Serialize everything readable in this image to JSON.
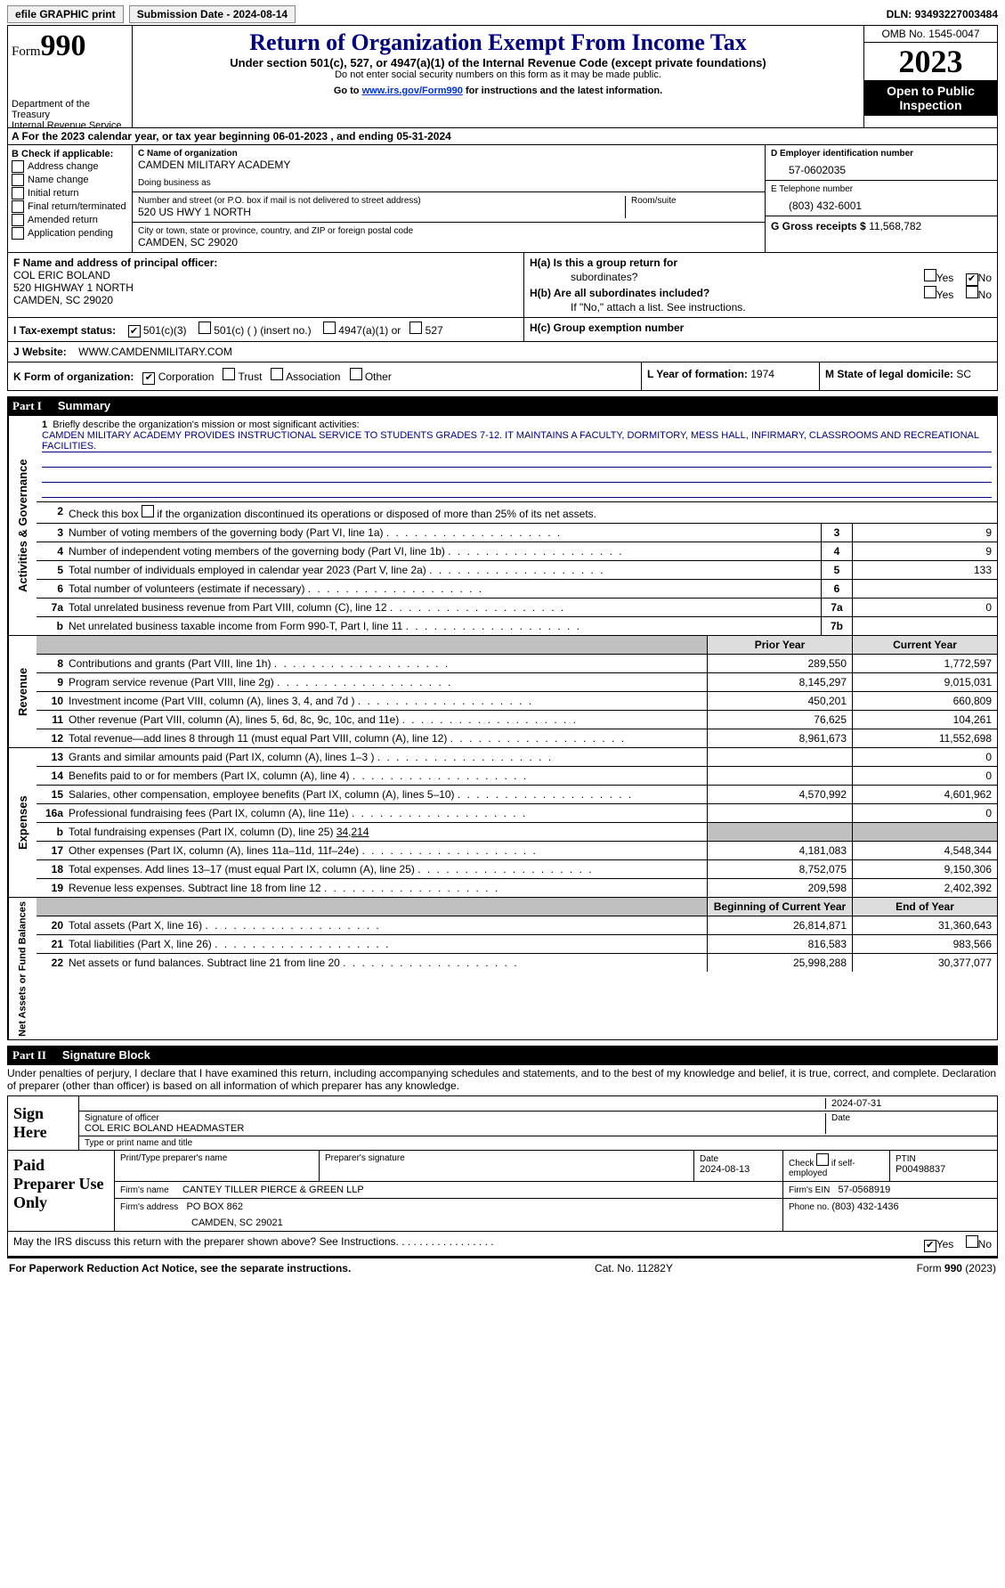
{
  "topbar": {
    "efile": "efile GRAPHIC print",
    "submission_label": "Submission Date - ",
    "submission_date": "2024-08-14",
    "dln_label": "DLN: ",
    "dln": "93493227003484"
  },
  "header": {
    "form_label": "Form",
    "form_number": "990",
    "title": "Return of Organization Exempt From Income Tax",
    "subtitle1": "Under section 501(c), 527, or 4947(a)(1) of the Internal Revenue Code (except private foundations)",
    "subtitle2": "Do not enter social security numbers on this form as it may be made public.",
    "subtitle3_prefix": "Go to ",
    "subtitle3_link": "www.irs.gov/Form990",
    "subtitle3_suffix": " for instructions and the latest information.",
    "dept": "Department of the Treasury",
    "irs": "Internal Revenue Service",
    "omb": "OMB No. 1545-0047",
    "year": "2023",
    "open": "Open to Public Inspection"
  },
  "line_a": {
    "text_pre": "A For the 2023 calendar year, or tax year beginning ",
    "begin": "06-01-2023",
    "mid": " , and ending ",
    "end": "05-31-2024"
  },
  "col_b": {
    "header": "B Check if applicable:",
    "items": [
      "Address change",
      "Name change",
      "Initial return",
      "Final return/terminated",
      "Amended return",
      "Application pending"
    ]
  },
  "col_c": {
    "name_label": "C Name of organization",
    "name": "CAMDEN MILITARY ACADEMY",
    "dba_label": "Doing business as",
    "street_label": "Number and street (or P.O. box if mail is not delivered to street address)",
    "street": "520 US HWY 1 NORTH",
    "room_label": "Room/suite",
    "city_label": "City or town, state or province, country, and ZIP or foreign postal code",
    "city": "CAMDEN, SC  29020"
  },
  "col_de": {
    "d_label": "D Employer identification number",
    "d_val": "57-0602035",
    "e_label": "E Telephone number",
    "e_val": "(803) 432-6001",
    "g_label": "G Gross receipts $ ",
    "g_val": "11,568,782"
  },
  "row_f": {
    "f_label": "F Name and address of principal officer:",
    "f_name": "COL ERIC BOLAND",
    "f_street": "520 HIGHWAY 1 NORTH",
    "f_city": "CAMDEN, SC  29020",
    "ha_label": "H(a)  Is this a group return for",
    "ha_sub": "subordinates?",
    "hb_label": "H(b)  Are all subordinates included?",
    "hb_note": "If \"No,\" attach a list. See instructions.",
    "yes": "Yes",
    "no": "No"
  },
  "row_i": {
    "label": "I  Tax-exempt status:",
    "opts": [
      "501(c)(3)",
      "501(c) (  ) (insert no.)",
      "4947(a)(1) or",
      "527"
    ],
    "checked": 0,
    "hc_label": "H(c)  Group exemption number"
  },
  "row_j": {
    "label": "J  Website:",
    "val": "WWW.CAMDENMILITARY.COM"
  },
  "row_k": {
    "k_label": "K Form of organization:",
    "k_opts": [
      "Corporation",
      "Trust",
      "Association",
      "Other"
    ],
    "k_checked": 0,
    "l_label": "L Year of formation: ",
    "l_val": "1974",
    "m_label": "M State of legal domicile: ",
    "m_val": "SC"
  },
  "part1": {
    "num": "Part I",
    "title": "Summary"
  },
  "sec_ag": {
    "label": "Activities & Governance",
    "q1_num": "1",
    "q1": "Briefly describe the organization's mission or most significant activities:",
    "q1_val": "CAMDEN MILITARY ACADEMY PROVIDES INSTRUCTIONAL SERVICE TO STUDENTS GRADES 7-12. IT MAINTAINS A FACULTY, DORMITORY, MESS HALL, INFIRMARY, CLASSROOMS AND RECREATIONAL FACILITIES.",
    "q2_num": "2",
    "q2": "Check this box   if the organization discontinued its operations or disposed of more than 25% of its net assets.",
    "rows": [
      {
        "n": "3",
        "l": "Number of voting members of the governing body (Part VI, line 1a)",
        "box": "3",
        "v": "9"
      },
      {
        "n": "4",
        "l": "Number of independent voting members of the governing body (Part VI, line 1b)",
        "box": "4",
        "v": "9"
      },
      {
        "n": "5",
        "l": "Total number of individuals employed in calendar year 2023 (Part V, line 2a)",
        "box": "5",
        "v": "133"
      },
      {
        "n": "6",
        "l": "Total number of volunteers (estimate if necessary)",
        "box": "6",
        "v": ""
      },
      {
        "n": "7a",
        "l": "Total unrelated business revenue from Part VIII, column (C), line 12",
        "box": "7a",
        "v": "0"
      },
      {
        "n": "b",
        "ind": true,
        "l": "Net unrelated business taxable income from Form 990-T, Part I, line 11",
        "box": "7b",
        "v": ""
      }
    ]
  },
  "sec_rev": {
    "label": "Revenue",
    "py": "Prior Year",
    "cy": "Current Year",
    "rows": [
      {
        "n": "8",
        "l": "Contributions and grants (Part VIII, line 1h)",
        "py": "289,550",
        "cy": "1,772,597"
      },
      {
        "n": "9",
        "l": "Program service revenue (Part VIII, line 2g)",
        "py": "8,145,297",
        "cy": "9,015,031"
      },
      {
        "n": "10",
        "l": "Investment income (Part VIII, column (A), lines 3, 4, and 7d )",
        "py": "450,201",
        "cy": "660,809"
      },
      {
        "n": "11",
        "l": "Other revenue (Part VIII, column (A), lines 5, 6d, 8c, 9c, 10c, and 11e)",
        "py": "76,625",
        "cy": "104,261"
      },
      {
        "n": "12",
        "l": "Total revenue—add lines 8 through 11 (must equal Part VIII, column (A), line 12)",
        "py": "8,961,673",
        "cy": "11,552,698"
      }
    ]
  },
  "sec_exp": {
    "label": "Expenses",
    "rows": [
      {
        "n": "13",
        "l": "Grants and similar amounts paid (Part IX, column (A), lines 1–3 )",
        "py": "",
        "cy": "0"
      },
      {
        "n": "14",
        "l": "Benefits paid to or for members (Part IX, column (A), line 4)",
        "py": "",
        "cy": "0"
      },
      {
        "n": "15",
        "l": "Salaries, other compensation, employee benefits (Part IX, column (A), lines 5–10)",
        "py": "4,570,992",
        "cy": "4,601,962"
      },
      {
        "n": "16a",
        "l": "Professional fundraising fees (Part IX, column (A), line 11e)",
        "py": "",
        "cy": "0"
      },
      {
        "n": "b",
        "ind": true,
        "l": "Total fundraising expenses (Part IX, column (D), line 25) ",
        "extra": "34,214",
        "grey": true
      },
      {
        "n": "17",
        "l": "Other expenses (Part IX, column (A), lines 11a–11d, 11f–24e)",
        "py": "4,181,083",
        "cy": "4,548,344"
      },
      {
        "n": "18",
        "l": "Total expenses. Add lines 13–17 (must equal Part IX, column (A), line 25)",
        "py": "8,752,075",
        "cy": "9,150,306"
      },
      {
        "n": "19",
        "l": "Revenue less expenses. Subtract line 18 from line 12",
        "py": "209,598",
        "cy": "2,402,392"
      }
    ]
  },
  "sec_na": {
    "label": "Net Assets or Fund Balances",
    "py": "Beginning of Current Year",
    "cy": "End of Year",
    "rows": [
      {
        "n": "20",
        "l": "Total assets (Part X, line 16)",
        "py": "26,814,871",
        "cy": "31,360,643"
      },
      {
        "n": "21",
        "l": "Total liabilities (Part X, line 26)",
        "py": "816,583",
        "cy": "983,566"
      },
      {
        "n": "22",
        "l": "Net assets or fund balances. Subtract line 21 from line 20",
        "py": "25,998,288",
        "cy": "30,377,077"
      }
    ]
  },
  "part2": {
    "num": "Part II",
    "title": "Signature Block"
  },
  "penalties": "Under penalties of perjury, I declare that I have examined this return, including accompanying schedules and statements, and to the best of my knowledge and belief, it is true, correct, and complete. Declaration of preparer (other than officer) is based on all information of which preparer has any knowledge.",
  "sign": {
    "left": "Sign Here",
    "date": "2024-07-31",
    "sig_label": "Signature of officer",
    "name": "COL ERIC BOLAND HEADMASTER",
    "name_label": "Type or print name and title",
    "date_label": "Date"
  },
  "paid": {
    "left": "Paid Preparer Use Only",
    "c1": "Print/Type preparer's name",
    "c2": "Preparer's signature",
    "c3_label": "Date",
    "c3": "2024-08-13",
    "c4_label": "Check   if self-employed",
    "c5_label": "PTIN",
    "c5": "P00498837",
    "firm_label": "Firm's name",
    "firm": "CANTEY TILLER PIERCE & GREEN LLP",
    "ein_label": "Firm's EIN",
    "ein": "57-0568919",
    "addr_label": "Firm's address",
    "addr1": "PO BOX 862",
    "addr2": "CAMDEN, SC  29021",
    "phone_label": "Phone no. ",
    "phone": "(803) 432-1436"
  },
  "discuss": {
    "q": "May the IRS discuss this return with the preparer shown above? See Instructions.",
    "yes": "Yes",
    "no": "No"
  },
  "footer": {
    "l": "For Paperwork Reduction Act Notice, see the separate instructions.",
    "m": "Cat. No. 11282Y",
    "r": "Form 990 (2023)"
  },
  "colors": {
    "title": "#000080",
    "link": "#0033cc"
  }
}
